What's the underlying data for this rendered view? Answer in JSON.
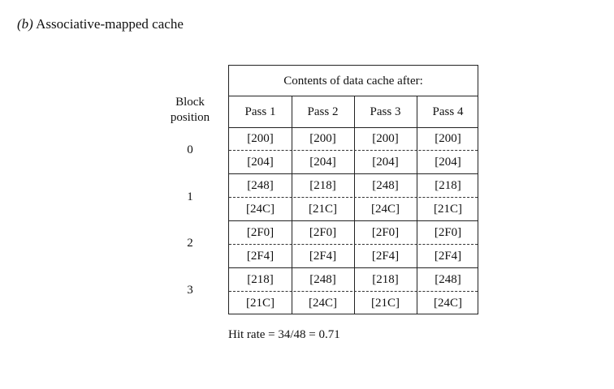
{
  "title": {
    "letter": "(b)",
    "text": "Associative-mapped cache"
  },
  "block_position_label": [
    "Block",
    "position"
  ],
  "block_positions": [
    "0",
    "1",
    "2",
    "3"
  ],
  "table_header": "Contents of data cache after:",
  "passes": [
    "Pass 1",
    "Pass 2",
    "Pass 3",
    "Pass 4"
  ],
  "rows": [
    [
      "[200]",
      "[200]",
      "[200]",
      "[200]"
    ],
    [
      "[204]",
      "[204]",
      "[204]",
      "[204]"
    ],
    [
      "[248]",
      "[218]",
      "[248]",
      "[218]"
    ],
    [
      "[24C]",
      "[21C]",
      "[24C]",
      "[21C]"
    ],
    [
      "[2F0]",
      "[2F0]",
      "[2F0]",
      "[2F0]"
    ],
    [
      "[2F4]",
      "[2F4]",
      "[2F4]",
      "[2F4]"
    ],
    [
      "[218]",
      "[248]",
      "[218]",
      "[248]"
    ],
    [
      "[21C]",
      "[24C]",
      "[21C]",
      "[24C]"
    ]
  ],
  "hit_rate": "Hit rate = 34/48 = 0.71"
}
